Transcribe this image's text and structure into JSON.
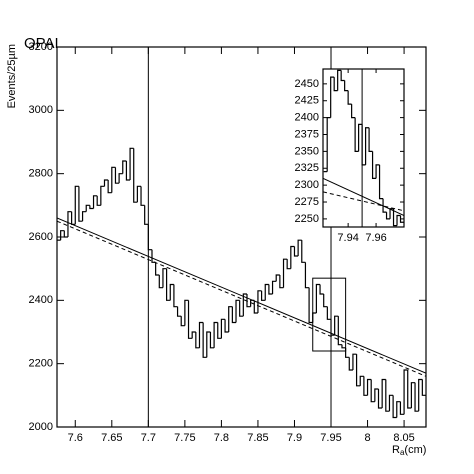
{
  "chart_data": [
    {
      "type": "histogram",
      "title": "OPAL",
      "y_label": "Events/25µm",
      "x_label_parts": [
        "R",
        "a",
        "(cm)"
      ],
      "bins": [
        7.575,
        7.58,
        7.585,
        7.59,
        7.595,
        7.6,
        7.605,
        7.61,
        7.615,
        7.62,
        7.625,
        7.63,
        7.635,
        7.64,
        7.645,
        7.65,
        7.655,
        7.66,
        7.665,
        7.67,
        7.675,
        7.68,
        7.685,
        7.69,
        7.695,
        7.7,
        7.705,
        7.71,
        7.715,
        7.72,
        7.725,
        7.73,
        7.735,
        7.74,
        7.745,
        7.75,
        7.755,
        7.76,
        7.765,
        7.77,
        7.775,
        7.78,
        7.785,
        7.79,
        7.795,
        7.8,
        7.805,
        7.81,
        7.815,
        7.82,
        7.825,
        7.83,
        7.835,
        7.84,
        7.845,
        7.85,
        7.855,
        7.86,
        7.865,
        7.87,
        7.875,
        7.88,
        7.885,
        7.89,
        7.895,
        7.9,
        7.905,
        7.91,
        7.915,
        7.92,
        7.925,
        7.93,
        7.935,
        7.94,
        7.945,
        7.95,
        7.955,
        7.96,
        7.965,
        7.97,
        7.975,
        7.98,
        7.985,
        7.99,
        7.995,
        8,
        8.005,
        8.01,
        8.015,
        8.02,
        8.025,
        8.03,
        8.035,
        8.04,
        8.045,
        8.05,
        8.055,
        8.06,
        8.065,
        8.07,
        8.075,
        8.08
      ],
      "values": [
        2590,
        2620,
        2600,
        2680,
        2640,
        2760,
        2650,
        2680,
        2700,
        2690,
        2730,
        2700,
        2760,
        2780,
        2740,
        2820,
        2770,
        2800,
        2840,
        2780,
        2880,
        2710,
        2760,
        2700,
        2640,
        2560,
        2520,
        2480,
        2440,
        2500,
        2400,
        2450,
        2380,
        2350,
        2320,
        2400,
        2280,
        2300,
        2250,
        2330,
        2220,
        2300,
        2250,
        2330,
        2280,
        2340,
        2300,
        2380,
        2330,
        2400,
        2350,
        2420,
        2380,
        2400,
        2360,
        2430,
        2400,
        2450,
        2420,
        2460,
        2480,
        2440,
        2530,
        2500,
        2570,
        2540,
        2590,
        2520,
        2440,
        2330,
        2360,
        2450,
        2420,
        2380,
        2340,
        2290,
        2350,
        2260,
        2250,
        2220,
        2180,
        2230,
        2130,
        2160,
        2100,
        2150,
        2080,
        2120,
        2060,
        2150,
        2050,
        2100,
        2030,
        2080,
        2040,
        2180,
        2060,
        2140,
        2050,
        2150,
        2100
      ],
      "color": "#000000",
      "fit_lines": [
        {
          "style": "solid",
          "x": [
            7.575,
            8.08
          ],
          "values": [
            2660,
            2170
          ]
        },
        {
          "style": "dashed",
          "x": [
            7.575,
            8.08
          ],
          "values": [
            2650,
            2160
          ]
        }
      ],
      "marker_lines": [
        7.7,
        7.95
      ],
      "zoom_box": {
        "x": [
          7.925,
          7.97
        ],
        "y": [
          2240,
          2470
        ]
      },
      "xlim": [
        7.575,
        8.08
      ],
      "ylim": [
        2000,
        3200
      ],
      "xticks": [
        7.6,
        7.65,
        7.7,
        7.75,
        7.8,
        7.85,
        7.9,
        7.95,
        8,
        8.05
      ],
      "yticks": [
        2000,
        2200,
        2400,
        2600,
        2800,
        3000,
        3200
      ]
    },
    {
      "type": "histogram",
      "bins": [
        7.9225,
        7.925,
        7.9275,
        7.93,
        7.9325,
        7.935,
        7.9375,
        7.94,
        7.9425,
        7.945,
        7.9475,
        7.95,
        7.9525,
        7.955,
        7.9575,
        7.96,
        7.9625,
        7.965,
        7.9675,
        7.97,
        7.9725,
        7.975,
        7.9775,
        7.98
      ],
      "values": [
        2320,
        2400,
        2460,
        2440,
        2470,
        2455,
        2440,
        2420,
        2400,
        2350,
        2390,
        2330,
        2385,
        2350,
        2310,
        2330,
        2280,
        2260,
        2250,
        2265,
        2240,
        2255,
        2245
      ],
      "color": "#000000",
      "fit_lines": [
        {
          "style": "solid",
          "x": [
            7.922,
            7.98
          ],
          "values": [
            2310,
            2255
          ]
        },
        {
          "style": "dashed",
          "x": [
            7.922,
            7.98
          ],
          "values": [
            2290,
            2262
          ]
        }
      ],
      "marker_lines": [
        7.95
      ],
      "xlim": [
        7.922,
        7.98
      ],
      "ylim": [
        2238,
        2472
      ],
      "xticks": [
        7.94,
        7.96
      ],
      "yticks": [
        2250,
        2275,
        2300,
        2325,
        2350,
        2375,
        2400,
        2425,
        2450
      ]
    }
  ]
}
